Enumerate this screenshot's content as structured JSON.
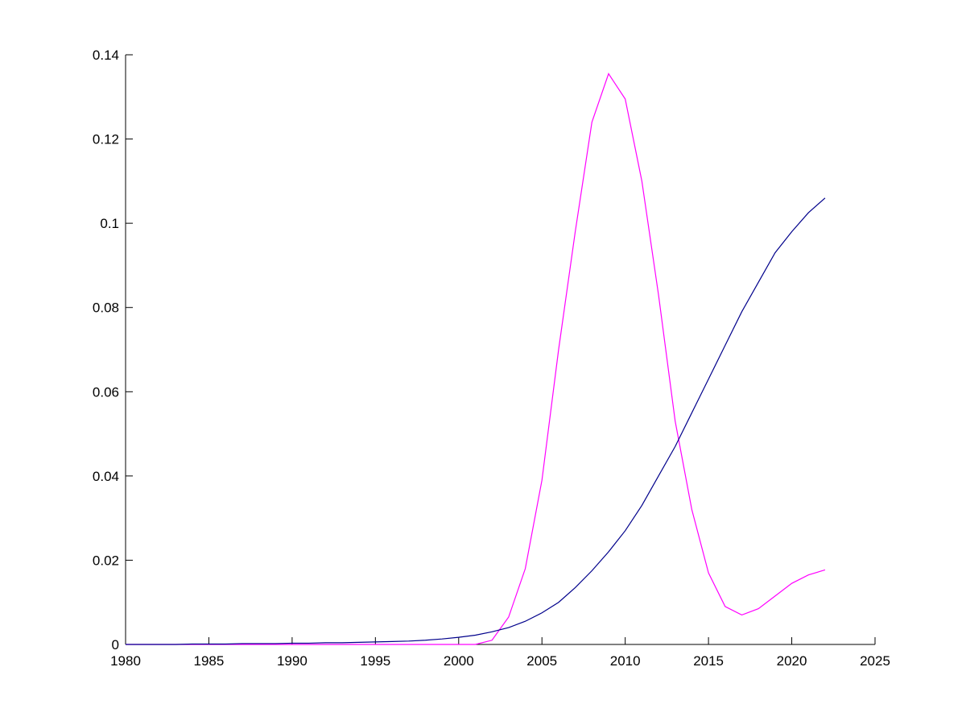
{
  "chart_data": {
    "type": "line",
    "x": [
      1980,
      1981,
      1982,
      1983,
      1984,
      1985,
      1986,
      1987,
      1988,
      1989,
      1990,
      1991,
      1992,
      1993,
      1994,
      1995,
      1996,
      1997,
      1998,
      1999,
      2000,
      2001,
      2002,
      2003,
      2004,
      2005,
      2006,
      2007,
      2008,
      2009,
      2010,
      2011,
      2012,
      2013,
      2014,
      2015,
      2016,
      2017,
      2018,
      2019,
      2020,
      2021,
      2022
    ],
    "series": [
      {
        "color": "#ff00ff",
        "values": [
          0,
          0,
          0,
          0,
          0,
          0,
          0,
          0,
          0,
          0,
          0,
          0,
          0,
          0,
          0,
          0,
          0,
          0,
          0,
          0,
          0,
          0,
          0.001,
          0.0065,
          0.018,
          0.039,
          0.07,
          0.098,
          0.124,
          0.1355,
          0.1295,
          0.11,
          0.083,
          0.053,
          0.032,
          0.017,
          0.009,
          0.007,
          0.0085,
          0.0115,
          0.0145,
          0.0165,
          0.0177
        ]
      },
      {
        "color": "#00008b",
        "values": [
          0,
          0,
          0,
          0,
          0.0001,
          0.0001,
          0.0001,
          0.0002,
          0.0002,
          0.0002,
          0.0003,
          0.0003,
          0.0004,
          0.0004,
          0.0005,
          0.0006,
          0.0007,
          0.0008,
          0.001,
          0.0013,
          0.0017,
          0.0022,
          0.003,
          0.004,
          0.0055,
          0.0075,
          0.01,
          0.0135,
          0.0175,
          0.022,
          0.027,
          0.033,
          0.04,
          0.047,
          0.055,
          0.063,
          0.071,
          0.079,
          0.086,
          0.093,
          0.098,
          0.1025,
          0.106
        ]
      }
    ],
    "xlim": [
      1980,
      2025
    ],
    "xticks": [
      1980,
      1985,
      1990,
      1995,
      2000,
      2005,
      2010,
      2015,
      2020,
      2025
    ],
    "ylim": [
      0,
      0.14
    ],
    "yticks": [
      0,
      0.02,
      0.04,
      0.06,
      0.08,
      0.1,
      0.12,
      0.14
    ]
  }
}
